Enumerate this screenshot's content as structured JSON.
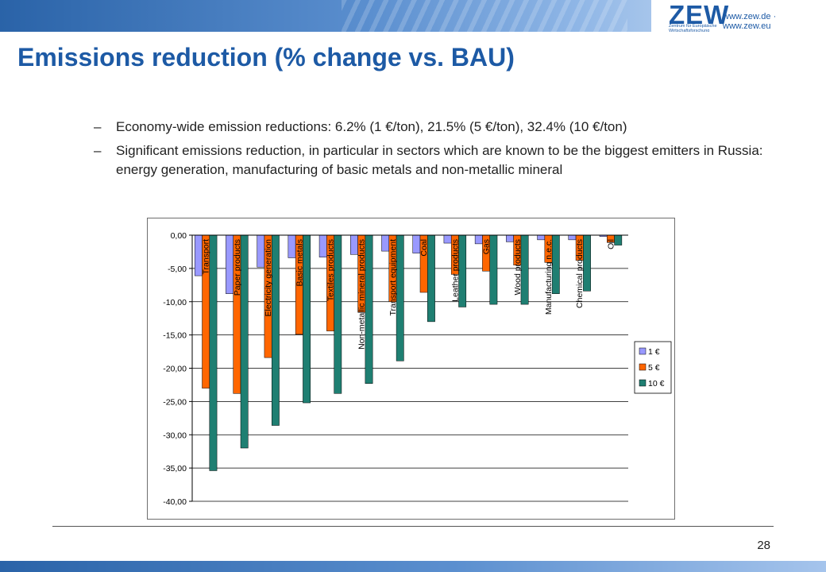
{
  "header": {
    "logo_text": "ZEW",
    "logo_subtext": "Zentrum für Europäische Wirtschaftsforschung GmbH",
    "website": "www.zew.de · www.zew.eu"
  },
  "slide": {
    "title": "Emissions reduction (% change vs. BAU)",
    "bullets": [
      "Economy-wide emission reductions: 6.2% (1 €/ton), 21.5% (5 €/ton), 32.4% (10 €/ton)",
      "Significant emissions reduction, in particular in sectors which are known to be the biggest emitters in Russia: energy generation, manufacturing of basic metals and non-metallic mineral"
    ],
    "bullet_dash": "–",
    "page_number": "28"
  },
  "colors": {
    "brand_blue": "#1d5aa5",
    "series_1": "#9999ff",
    "series_5": "#ff6600",
    "series_10": "#1f7f72"
  },
  "chart_data": {
    "type": "bar",
    "categories": [
      "Transport",
      "Paper products",
      "Electricity generation",
      "Basic metals",
      "Textiles products",
      "Non-metallic mineral products",
      "Transport equipment",
      "Coal",
      "Leather products",
      "Gas",
      "Wood products",
      "Manufacturing n.e.c.",
      "Chemical products",
      "Oil"
    ],
    "series": [
      {
        "name": "1 €",
        "values": [
          -6.1,
          -8.8,
          -4.8,
          -3.4,
          -3.3,
          -2.9,
          -2.4,
          -2.7,
          -1.2,
          -1.3,
          -1.0,
          -0.7,
          -0.7,
          -0.2
        ]
      },
      {
        "name": "5 €",
        "values": [
          -23.0,
          -23.8,
          -18.4,
          -14.9,
          -14.4,
          -11.6,
          -10.0,
          -8.6,
          -5.9,
          -5.4,
          -4.5,
          -4.1,
          -3.8,
          -1.1
        ]
      },
      {
        "name": "10 €",
        "values": [
          -35.4,
          -32.0,
          -28.6,
          -25.2,
          -23.8,
          -22.3,
          -18.9,
          -13.0,
          -10.8,
          -10.4,
          -10.4,
          -8.8,
          -8.4,
          -1.5
        ]
      }
    ],
    "ylim": [
      -40,
      0
    ],
    "yticks": [
      "0,00",
      "-5,00",
      "-10,00",
      "-15,00",
      "-20,00",
      "-25,00",
      "-30,00",
      "-35,00",
      "-40,00"
    ],
    "grid": true,
    "legend_placement": "right"
  }
}
